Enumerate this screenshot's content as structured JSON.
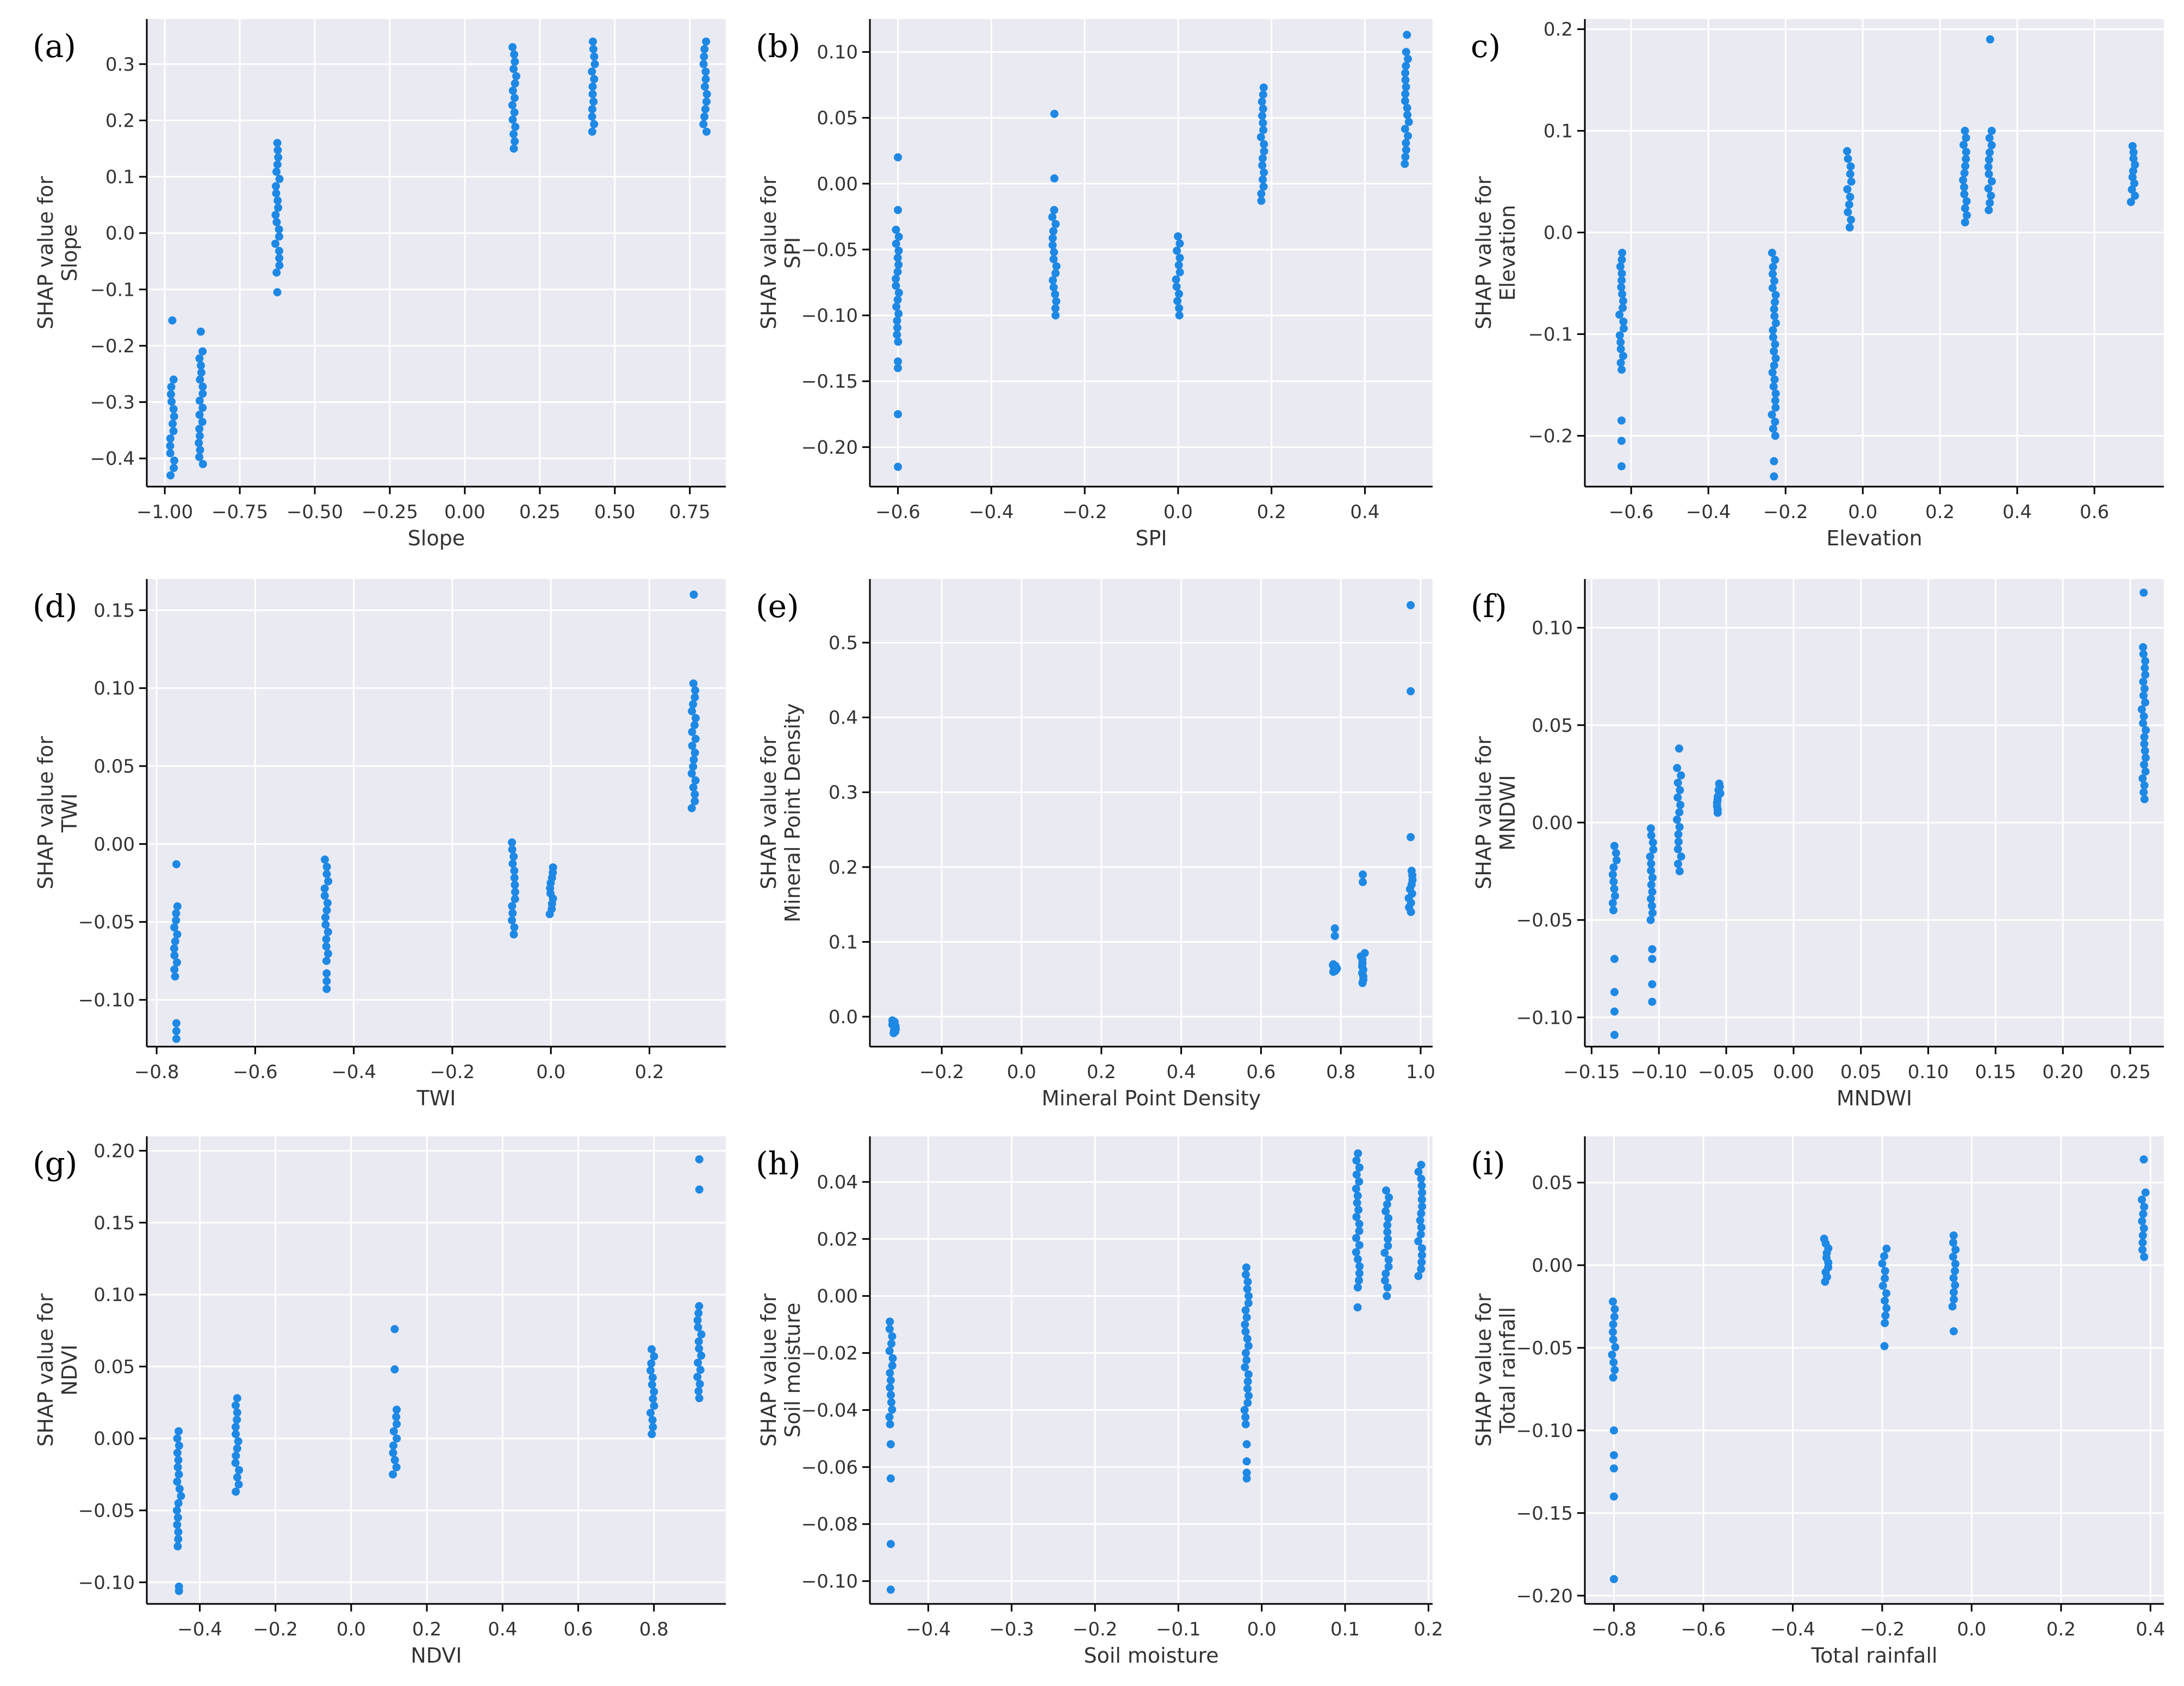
{
  "figure": {
    "style": {
      "background": "#eaeaf2",
      "grid": "#ffffff",
      "point": "#1e88e5"
    }
  },
  "chart_data": [
    {
      "type": "scatter",
      "panel": "(a)",
      "xlabel": "Slope",
      "ylabel": [
        "SHAP value for",
        "Slope"
      ],
      "xlim": [
        -1.06,
        0.87
      ],
      "ylim": [
        -0.45,
        0.38
      ],
      "xticks": [
        -1.0,
        -0.75,
        -0.5,
        -0.25,
        0.0,
        0.25,
        0.5,
        0.75
      ],
      "xticklabels": [
        "−1.00",
        "−0.75",
        "−0.50",
        "−0.25",
        "0.00",
        "0.25",
        "0.50",
        "0.75"
      ],
      "yticks": [
        -0.4,
        -0.3,
        -0.2,
        -0.1,
        0.0,
        0.1,
        0.2,
        0.3
      ],
      "yticklabels": [
        "−0.4",
        "−0.3",
        "−0.2",
        "−0.1",
        "0.0",
        "0.1",
        "0.2",
        "0.3"
      ],
      "columns": [
        {
          "x": -0.975,
          "min": -0.43,
          "max": -0.26,
          "extra": [
            -0.155
          ]
        },
        {
          "x": -0.88,
          "min": -0.41,
          "max": -0.21,
          "extra": [
            -0.175
          ]
        },
        {
          "x": -0.625,
          "min": -0.07,
          "max": 0.16,
          "extra": [
            -0.105
          ]
        },
        {
          "x": 0.165,
          "min": 0.15,
          "max": 0.33,
          "extra": []
        },
        {
          "x": 0.43,
          "min": 0.18,
          "max": 0.34,
          "extra": []
        },
        {
          "x": 0.8,
          "min": 0.18,
          "max": 0.34,
          "extra": []
        }
      ]
    },
    {
      "type": "scatter",
      "panel": "(b)",
      "xlabel": "SPI",
      "ylabel": [
        "SHAP value for",
        "SPI"
      ],
      "xlim": [
        -0.66,
        0.545
      ],
      "ylim": [
        -0.23,
        0.125
      ],
      "xticks": [
        -0.6,
        -0.4,
        -0.2,
        0.0,
        0.2,
        0.4
      ],
      "xticklabels": [
        "−0.6",
        "−0.4",
        "−0.2",
        "0.0",
        "0.2",
        "0.4"
      ],
      "yticks": [
        -0.2,
        -0.15,
        -0.1,
        -0.05,
        0.0,
        0.05,
        0.1
      ],
      "yticklabels": [
        "−0.20",
        "−0.15",
        "−0.10",
        "−0.05",
        "0.00",
        "0.05",
        "0.10"
      ],
      "columns": [
        {
          "x": -0.6,
          "min": -0.12,
          "max": -0.035,
          "extra": [
            0.02,
            -0.02,
            -0.135,
            -0.14,
            -0.175,
            -0.215
          ]
        },
        {
          "x": -0.265,
          "min": -0.1,
          "max": -0.02,
          "extra": [
            0.053,
            0.004
          ]
        },
        {
          "x": 0.0,
          "min": -0.1,
          "max": -0.04,
          "extra": []
        },
        {
          "x": 0.18,
          "min": -0.013,
          "max": 0.073,
          "extra": []
        },
        {
          "x": 0.49,
          "min": 0.015,
          "max": 0.1,
          "extra": [
            0.113
          ]
        }
      ]
    },
    {
      "type": "scatter",
      "panel": "c)",
      "xlabel": "Elevation",
      "ylabel": [
        "SHAP value for",
        "Elevation"
      ],
      "xlim": [
        -0.72,
        0.78
      ],
      "ylim": [
        -0.25,
        0.21
      ],
      "xticks": [
        -0.6,
        -0.4,
        -0.2,
        0.0,
        0.2,
        0.4,
        0.6
      ],
      "xticklabels": [
        "−0.6",
        "−0.4",
        "−0.2",
        "0.0",
        "0.2",
        "0.4",
        "0.6"
      ],
      "yticks": [
        -0.2,
        -0.1,
        0.0,
        0.1,
        0.2
      ],
      "yticklabels": [
        "−0.2",
        "−0.1",
        "0.0",
        "0.1",
        "0.2"
      ],
      "columns": [
        {
          "x": -0.625,
          "min": -0.135,
          "max": -0.02,
          "extra": [
            -0.185,
            -0.205,
            -0.23
          ]
        },
        {
          "x": -0.23,
          "min": -0.2,
          "max": -0.02,
          "extra": [
            -0.225,
            -0.24
          ]
        },
        {
          "x": -0.035,
          "min": 0.005,
          "max": 0.08,
          "extra": []
        },
        {
          "x": 0.265,
          "min": 0.01,
          "max": 0.1,
          "extra": []
        },
        {
          "x": 0.33,
          "min": 0.022,
          "max": 0.1,
          "extra": [
            0.19
          ]
        },
        {
          "x": 0.7,
          "min": 0.03,
          "max": 0.085,
          "extra": []
        }
      ]
    },
    {
      "type": "scatter",
      "panel": "(d)",
      "xlabel": "TWI",
      "ylabel": [
        "SHAP value for",
        "TWI"
      ],
      "xlim": [
        -0.82,
        0.355
      ],
      "ylim": [
        -0.13,
        0.17
      ],
      "xticks": [
        -0.8,
        -0.6,
        -0.4,
        -0.2,
        0.0,
        0.2
      ],
      "xticklabels": [
        "−0.8",
        "−0.6",
        "−0.4",
        "−0.2",
        "0.0",
        "0.2"
      ],
      "yticks": [
        -0.1,
        -0.05,
        0.0,
        0.05,
        0.1,
        0.15
      ],
      "yticklabels": [
        "−0.10",
        "−0.05",
        "0.00",
        "0.05",
        "0.10",
        "0.15"
      ],
      "columns": [
        {
          "x": -0.76,
          "min": -0.085,
          "max": -0.04,
          "extra": [
            -0.013,
            -0.115,
            -0.12,
            -0.125
          ]
        },
        {
          "x": -0.455,
          "min": -0.075,
          "max": -0.01,
          "extra": [
            -0.083,
            -0.088,
            -0.093
          ]
        },
        {
          "x": -0.075,
          "min": -0.058,
          "max": 0.001,
          "extra": []
        },
        {
          "x": 0.0,
          "min": -0.045,
          "max": -0.015,
          "extra": []
        },
        {
          "x": 0.29,
          "min": 0.023,
          "max": 0.103,
          "extra": [
            0.16
          ]
        }
      ]
    },
    {
      "type": "scatter",
      "panel": "(e)",
      "xlabel": "Mineral Point Density",
      "ylabel": [
        "SHAP value for",
        "Mineral Point Density"
      ],
      "xlim": [
        -0.38,
        1.03
      ],
      "ylim": [
        -0.04,
        0.585
      ],
      "xticks": [
        -0.2,
        0.0,
        0.2,
        0.4,
        0.6,
        0.8,
        1.0
      ],
      "xticklabels": [
        "−0.2",
        "0.0",
        "0.2",
        "0.4",
        "0.6",
        "0.8",
        "1.0"
      ],
      "yticks": [
        0.0,
        0.1,
        0.2,
        0.3,
        0.4,
        0.5
      ],
      "yticklabels": [
        "0.0",
        "0.1",
        "0.2",
        "0.3",
        "0.4",
        "0.5"
      ],
      "columns": [
        {
          "x": -0.32,
          "min": -0.022,
          "max": -0.005,
          "extra": []
        },
        {
          "x": 0.785,
          "min": 0.06,
          "max": 0.07,
          "extra": [
            0.108,
            0.118
          ]
        },
        {
          "x": 0.855,
          "min": 0.045,
          "max": 0.085,
          "extra": [
            0.18,
            0.19
          ]
        },
        {
          "x": 0.975,
          "min": 0.14,
          "max": 0.195,
          "extra": [
            0.24,
            0.435,
            0.55
          ]
        }
      ]
    },
    {
      "type": "scatter",
      "panel": "(f)",
      "xlabel": "MNDWI",
      "ylabel": [
        "SHAP value for",
        "MNDWI"
      ],
      "xlim": [
        -0.155,
        0.275
      ],
      "ylim": [
        -0.115,
        0.125
      ],
      "xticks": [
        -0.15,
        -0.1,
        -0.05,
        0.0,
        0.05,
        0.1,
        0.15,
        0.2,
        0.25
      ],
      "xticklabels": [
        "−0.15",
        "−0.10",
        "−0.05",
        "0.00",
        "0.05",
        "0.10",
        "0.15",
        "0.20",
        "0.25"
      ],
      "yticks": [
        -0.1,
        -0.05,
        0.0,
        0.05,
        0.1
      ],
      "yticklabels": [
        "−0.10",
        "−0.05",
        "0.00",
        "0.05",
        "0.10"
      ],
      "columns": [
        {
          "x": -0.133,
          "min": -0.045,
          "max": -0.012,
          "extra": [
            -0.07,
            -0.087,
            -0.097,
            -0.109
          ]
        },
        {
          "x": -0.105,
          "min": -0.05,
          "max": -0.003,
          "extra": [
            -0.065,
            -0.07,
            -0.083,
            -0.092
          ]
        },
        {
          "x": -0.085,
          "min": -0.025,
          "max": 0.028,
          "extra": [
            0.038
          ]
        },
        {
          "x": -0.056,
          "min": 0.005,
          "max": 0.02,
          "extra": []
        },
        {
          "x": 0.26,
          "min": 0.012,
          "max": 0.09,
          "extra": [
            0.118
          ]
        }
      ]
    },
    {
      "type": "scatter",
      "panel": "(g)",
      "xlabel": "NDVI",
      "ylabel": [
        "SHAP value for",
        "NDVI"
      ],
      "xlim": [
        -0.54,
        0.99
      ],
      "ylim": [
        -0.115,
        0.21
      ],
      "xticks": [
        -0.4,
        -0.2,
        0.0,
        0.2,
        0.4,
        0.6,
        0.8
      ],
      "xticklabels": [
        "−0.4",
        "−0.2",
        "0.0",
        "0.2",
        "0.4",
        "0.6",
        "0.8"
      ],
      "yticks": [
        -0.1,
        -0.05,
        0.0,
        0.05,
        0.1,
        0.15,
        0.2
      ],
      "yticklabels": [
        "−0.10",
        "−0.05",
        "0.00",
        "0.05",
        "0.10",
        "0.15",
        "0.20"
      ],
      "columns": [
        {
          "x": -0.455,
          "min": -0.075,
          "max": 0.005,
          "extra": [
            -0.103,
            -0.106
          ]
        },
        {
          "x": -0.3,
          "min": -0.037,
          "max": 0.028,
          "extra": []
        },
        {
          "x": 0.115,
          "min": -0.025,
          "max": 0.02,
          "extra": [
            0.048,
            0.076
          ]
        },
        {
          "x": 0.795,
          "min": 0.003,
          "max": 0.062,
          "extra": []
        },
        {
          "x": 0.92,
          "min": 0.028,
          "max": 0.092,
          "extra": [
            0.173,
            0.194
          ]
        }
      ]
    },
    {
      "type": "scatter",
      "panel": "(h)",
      "xlabel": "Soil moisture",
      "ylabel": [
        "SHAP value for",
        "Soil moisture"
      ],
      "xlim": [
        -0.47,
        0.205
      ],
      "ylim": [
        -0.108,
        0.056
      ],
      "xticks": [
        -0.4,
        -0.3,
        -0.2,
        -0.1,
        0.0,
        0.1,
        0.2
      ],
      "xticklabels": [
        "−0.4",
        "−0.3",
        "−0.2",
        "−0.1",
        "0.0",
        "0.1",
        "0.2"
      ],
      "yticks": [
        -0.1,
        -0.08,
        -0.06,
        -0.04,
        -0.02,
        0.0,
        0.02,
        0.04
      ],
      "yticklabels": [
        "−0.10",
        "−0.08",
        "−0.06",
        "−0.04",
        "−0.02",
        "0.00",
        "0.02",
        "0.04"
      ],
      "columns": [
        {
          "x": -0.445,
          "min": -0.045,
          "max": -0.009,
          "extra": [
            -0.052,
            -0.064,
            -0.087,
            -0.103
          ]
        },
        {
          "x": -0.018,
          "min": -0.045,
          "max": 0.01,
          "extra": [
            -0.052,
            -0.058,
            -0.062,
            -0.064
          ]
        },
        {
          "x": 0.115,
          "min": 0.003,
          "max": 0.05,
          "extra": [
            -0.004
          ]
        },
        {
          "x": 0.15,
          "min": 0.003,
          "max": 0.037,
          "extra": [
            0.0
          ]
        },
        {
          "x": 0.19,
          "min": 0.007,
          "max": 0.046,
          "extra": []
        }
      ]
    },
    {
      "type": "scatter",
      "panel": "(i)",
      "xlabel": "Total rainfall",
      "ylabel": [
        "SHAP value for",
        "Total rainfall"
      ],
      "xlim": [
        -0.865,
        0.43
      ],
      "ylim": [
        -0.205,
        0.078
      ],
      "xticks": [
        -0.8,
        -0.6,
        -0.4,
        -0.2,
        0.0,
        0.2,
        0.4
      ],
      "xticklabels": [
        "−0.8",
        "−0.6",
        "−0.4",
        "−0.2",
        "0.0",
        "0.2",
        "0.4"
      ],
      "yticks": [
        -0.2,
        -0.15,
        -0.1,
        -0.05,
        0.0,
        0.05
      ],
      "yticklabels": [
        "−0.20",
        "−0.15",
        "−0.10",
        "−0.05",
        "0.00",
        "0.05"
      ],
      "columns": [
        {
          "x": -0.8,
          "min": -0.068,
          "max": -0.022,
          "extra": [
            -0.1,
            -0.115,
            -0.123,
            -0.14,
            -0.19
          ]
        },
        {
          "x": -0.325,
          "min": -0.01,
          "max": 0.016,
          "extra": []
        },
        {
          "x": -0.195,
          "min": -0.035,
          "max": 0.01,
          "extra": [
            -0.049
          ]
        },
        {
          "x": -0.04,
          "min": -0.025,
          "max": 0.018,
          "extra": [
            -0.04
          ]
        },
        {
          "x": 0.385,
          "min": 0.005,
          "max": 0.044,
          "extra": [
            0.064
          ]
        }
      ]
    }
  ]
}
